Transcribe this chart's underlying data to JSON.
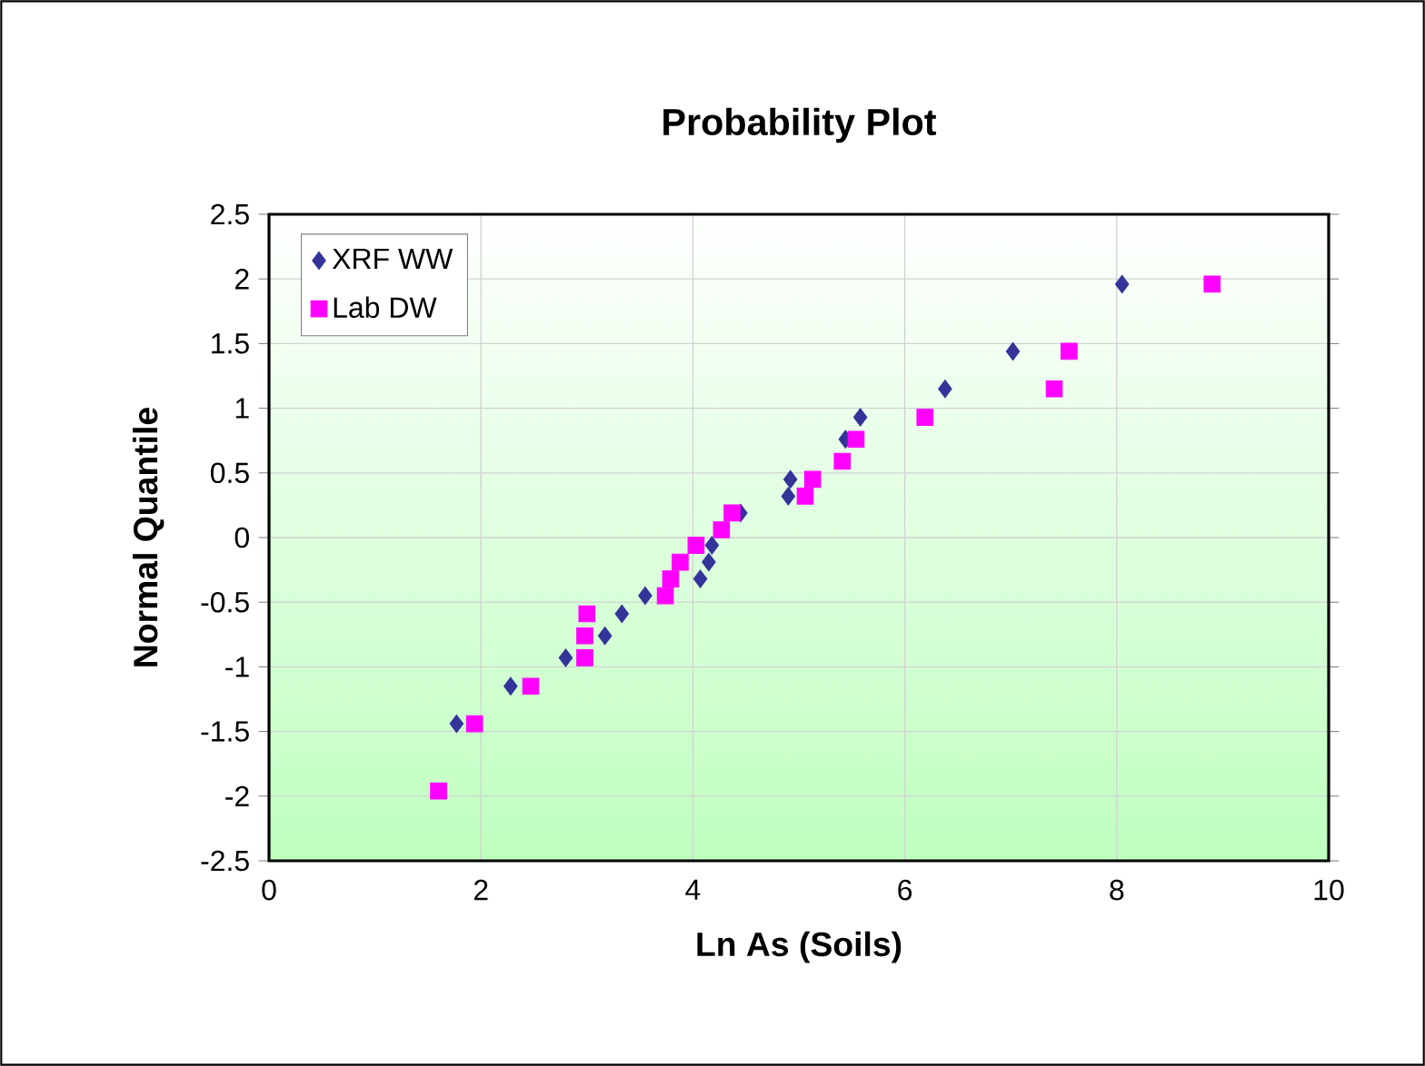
{
  "chart_data": {
    "type": "scatter",
    "title": "Probability Plot",
    "xlabel": "Ln As (Soils)",
    "ylabel": "Normal Quantile",
    "xlim": [
      0,
      10
    ],
    "ylim": [
      -2.5,
      2.5
    ],
    "xticks": [
      0,
      2,
      4,
      6,
      8,
      10
    ],
    "yticks": [
      -2.5,
      -2,
      -1.5,
      -1,
      -0.5,
      0,
      0.5,
      1,
      1.5,
      2,
      2.5
    ],
    "grid": true,
    "legend": "top left",
    "series": [
      {
        "name": "XRF WW",
        "color": "#333399",
        "marker": "diamond",
        "x": [
          1.77,
          2.28,
          2.8,
          3.17,
          3.33,
          3.55,
          4.07,
          4.15,
          4.18,
          4.3,
          4.45,
          4.9,
          4.92,
          5.44,
          5.58,
          6.38,
          7.02,
          8.05
        ],
        "values": [
          -1.44,
          -1.15,
          -0.93,
          -0.76,
          -0.59,
          -0.45,
          -0.32,
          -0.19,
          -0.06,
          null,
          0.19,
          0.32,
          0.45,
          0.76,
          0.93,
          1.15,
          1.44,
          1.96
        ]
      },
      {
        "name": "Lab DW",
        "color": "#ff00ff",
        "marker": "square",
        "x": [
          1.6,
          1.94,
          2.47,
          2.98,
          2.98,
          3.0,
          3.74,
          3.79,
          3.88,
          4.03,
          4.27,
          4.37,
          5.06,
          5.13,
          5.41,
          5.54,
          6.19,
          7.41,
          7.55,
          8.9
        ],
        "values": [
          -1.96,
          -1.44,
          -1.15,
          -0.93,
          -0.76,
          -0.59,
          -0.45,
          -0.32,
          -0.19,
          -0.06,
          0.06,
          0.19,
          0.32,
          0.45,
          0.59,
          0.76,
          0.93,
          1.15,
          1.44,
          1.96
        ]
      }
    ]
  }
}
